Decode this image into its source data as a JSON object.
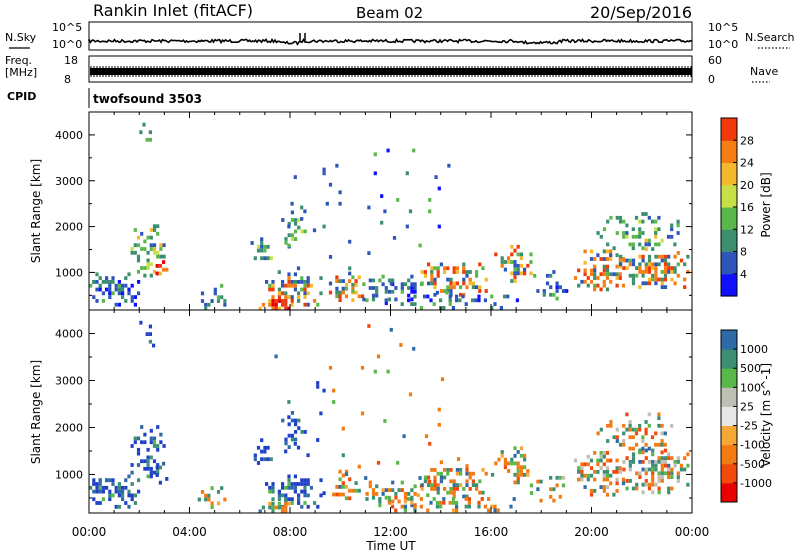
{
  "header": {
    "station": "Rankin Inlet (fitACF)",
    "beam": "Beam 02",
    "date": "20/Sep/2016"
  },
  "side_labels": {
    "nsky": "N.Sky",
    "nsearch": "N.Search",
    "freq_line1": "Freq.",
    "freq_line2": "[MHz]",
    "nave": "Nave",
    "cpid": "CPID",
    "cpid_value": "twofsound 3503"
  },
  "noise_panel": {
    "left_ticks": [
      "10^5",
      "10^0"
    ],
    "right_ticks": [
      "10^5",
      "10^0"
    ]
  },
  "freq_panel": {
    "left_ticks": [
      "18",
      "8"
    ],
    "right_ticks": [
      "60",
      "0"
    ]
  },
  "colors": {
    "power_scale": [
      "#1010ff",
      "#2e56b8",
      "#3b8f6e",
      "#5ab84a",
      "#c8e048",
      "#f5b92e",
      "#f57d12",
      "#f03a0a",
      "#e80000"
    ],
    "velocity_scale": [
      "#2040c8",
      "#2f6aa8",
      "#3c8f72",
      "#58b84a",
      "#bfbfb3",
      "#e7e7e7",
      "#f5a835",
      "#f27a12",
      "#f24a0a",
      "#e80000"
    ]
  },
  "chart_data": [
    {
      "type": "heatmap",
      "title": "",
      "quantity": "Power",
      "xlabel": "",
      "ylabel": "Slant Range [km]",
      "x_ticks": [
        "00:00",
        "04:00",
        "08:00",
        "12:00",
        "16:00",
        "20:00",
        "00:00"
      ],
      "x_range_hours": [
        0,
        24
      ],
      "y_ticks": [
        1000,
        2000,
        3000,
        4000
      ],
      "ylim": [
        180,
        4500
      ],
      "colorbar_label": "Power [dB]",
      "colorbar_ticks": [
        4,
        8,
        12,
        16,
        20,
        24,
        28
      ],
      "colorbar_range": [
        0,
        30
      ]
    },
    {
      "type": "heatmap",
      "title": "",
      "quantity": "Velocity",
      "xlabel": "Time UT",
      "ylabel": "Slant Range [km]",
      "x_ticks": [
        "00:00",
        "04:00",
        "08:00",
        "12:00",
        "16:00",
        "20:00",
        "00:00"
      ],
      "x_range_hours": [
        0,
        24
      ],
      "y_ticks": [
        1000,
        2000,
        3000,
        4000
      ],
      "ylim": [
        180,
        4500
      ],
      "colorbar_label": "Velocity [m s^-1]",
      "colorbar_ticks": [
        1000,
        500,
        100,
        25,
        -25,
        -100,
        -500,
        -1000
      ]
    }
  ]
}
